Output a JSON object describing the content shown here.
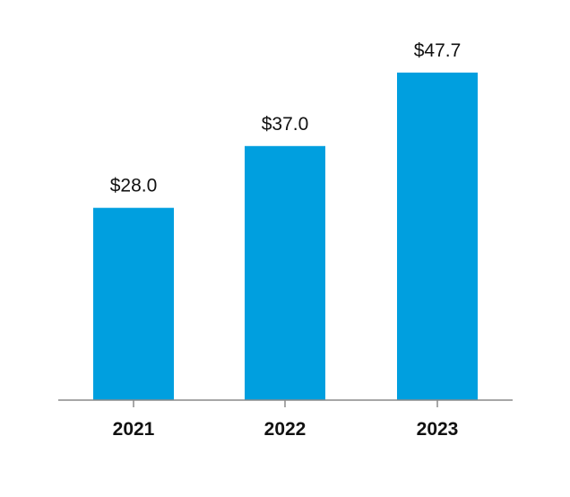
{
  "chart_data": {
    "type": "bar",
    "title": "",
    "xlabel": "",
    "ylabel": "",
    "categories": [
      "2021",
      "2022",
      "2023"
    ],
    "values": [
      28.0,
      37.0,
      47.7
    ],
    "value_labels": [
      "$28.0",
      "$37.0",
      "$47.7"
    ],
    "ylim": [
      0,
      48.6
    ],
    "grid": false,
    "legend": "none",
    "colors": {
      "bar": "#009FDF",
      "axis": "#8a8a8a",
      "text": "#111111"
    }
  }
}
